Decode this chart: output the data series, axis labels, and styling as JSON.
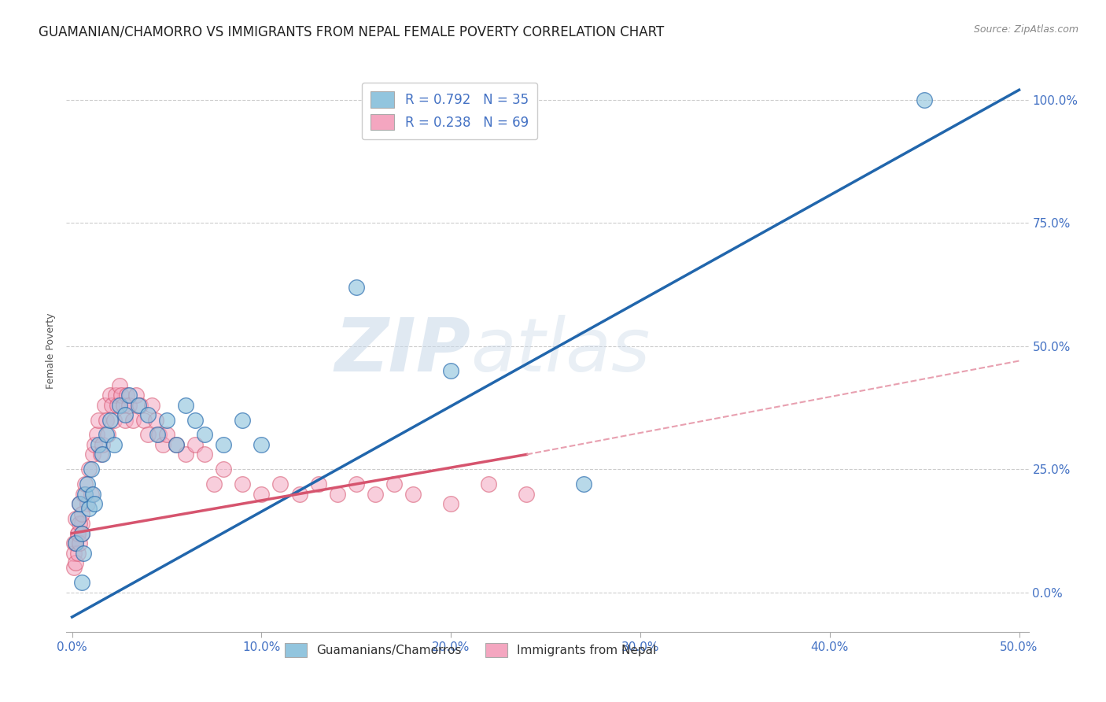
{
  "title": "GUAMANIAN/CHAMORRO VS IMMIGRANTS FROM NEPAL FEMALE POVERTY CORRELATION CHART",
  "source": "Source: ZipAtlas.com",
  "ylabel_label": "Female Poverty",
  "x_ticklabels": [
    "0.0%",
    "",
    "10.0%",
    "",
    "20.0%",
    "",
    "30.0%",
    "",
    "40.0%",
    "",
    "50.0%"
  ],
  "x_ticks": [
    0,
    0.05,
    0.1,
    0.15,
    0.2,
    0.25,
    0.3,
    0.35,
    0.4,
    0.45,
    0.5
  ],
  "x_ticklabels_shown": [
    "0.0%",
    "10.0%",
    "20.0%",
    "30.0%",
    "40.0%",
    "50.0%"
  ],
  "x_ticks_shown": [
    0.0,
    0.1,
    0.2,
    0.3,
    0.4,
    0.5
  ],
  "y_ticklabels": [
    "100.0%",
    "75.0%",
    "50.0%",
    "25.0%",
    "0.0%"
  ],
  "y_ticks": [
    1.0,
    0.75,
    0.5,
    0.25,
    0.0
  ],
  "xlim": [
    -0.003,
    0.505
  ],
  "ylim": [
    -0.08,
    1.06
  ],
  "blue_R": 0.792,
  "blue_N": 35,
  "pink_R": 0.238,
  "pink_N": 69,
  "blue_color": "#92c5de",
  "pink_color": "#f4a6c0",
  "blue_line_color": "#2166ac",
  "pink_line_solid_color": "#d6546e",
  "pink_line_dash_color": "#e8a0b0",
  "watermark_zip": "ZIP",
  "watermark_atlas": "atlas",
  "legend_label1": "Guamanians/Chamorros",
  "legend_label2": "Immigrants from Nepal",
  "background_color": "#ffffff",
  "grid_color": "#cccccc",
  "title_fontsize": 12,
  "axis_label_fontsize": 9,
  "tick_fontsize": 11,
  "blue_scatter_x": [
    0.002,
    0.003,
    0.004,
    0.005,
    0.006,
    0.007,
    0.008,
    0.009,
    0.01,
    0.011,
    0.012,
    0.014,
    0.016,
    0.018,
    0.02,
    0.022,
    0.025,
    0.028,
    0.03,
    0.035,
    0.04,
    0.045,
    0.05,
    0.055,
    0.06,
    0.065,
    0.07,
    0.08,
    0.09,
    0.1,
    0.15,
    0.2,
    0.27,
    0.005,
    0.45
  ],
  "blue_scatter_y": [
    0.1,
    0.15,
    0.18,
    0.12,
    0.08,
    0.2,
    0.22,
    0.17,
    0.25,
    0.2,
    0.18,
    0.3,
    0.28,
    0.32,
    0.35,
    0.3,
    0.38,
    0.36,
    0.4,
    0.38,
    0.36,
    0.32,
    0.35,
    0.3,
    0.38,
    0.35,
    0.32,
    0.3,
    0.35,
    0.3,
    0.62,
    0.45,
    0.22,
    0.02,
    1.0
  ],
  "pink_scatter_x": [
    0.001,
    0.002,
    0.003,
    0.004,
    0.005,
    0.006,
    0.007,
    0.008,
    0.009,
    0.01,
    0.011,
    0.012,
    0.013,
    0.014,
    0.015,
    0.016,
    0.017,
    0.018,
    0.019,
    0.02,
    0.021,
    0.022,
    0.023,
    0.024,
    0.025,
    0.026,
    0.027,
    0.028,
    0.029,
    0.03,
    0.032,
    0.034,
    0.036,
    0.038,
    0.04,
    0.042,
    0.044,
    0.046,
    0.048,
    0.05,
    0.055,
    0.06,
    0.065,
    0.07,
    0.075,
    0.08,
    0.09,
    0.1,
    0.11,
    0.12,
    0.13,
    0.14,
    0.15,
    0.16,
    0.17,
    0.18,
    0.2,
    0.22,
    0.24,
    0.001,
    0.001,
    0.002,
    0.002,
    0.003,
    0.003,
    0.004,
    0.004,
    0.005,
    0.005
  ],
  "pink_scatter_y": [
    0.1,
    0.15,
    0.12,
    0.18,
    0.14,
    0.2,
    0.22,
    0.18,
    0.25,
    0.2,
    0.28,
    0.3,
    0.32,
    0.35,
    0.28,
    0.3,
    0.38,
    0.35,
    0.32,
    0.4,
    0.38,
    0.35,
    0.4,
    0.38,
    0.42,
    0.4,
    0.38,
    0.35,
    0.4,
    0.38,
    0.35,
    0.4,
    0.38,
    0.35,
    0.32,
    0.38,
    0.35,
    0.32,
    0.3,
    0.32,
    0.3,
    0.28,
    0.3,
    0.28,
    0.22,
    0.25,
    0.22,
    0.2,
    0.22,
    0.2,
    0.22,
    0.2,
    0.22,
    0.2,
    0.22,
    0.2,
    0.18,
    0.22,
    0.2,
    0.05,
    0.08,
    0.06,
    0.1,
    0.08,
    0.12,
    0.1,
    0.14,
    0.12,
    0.16
  ]
}
